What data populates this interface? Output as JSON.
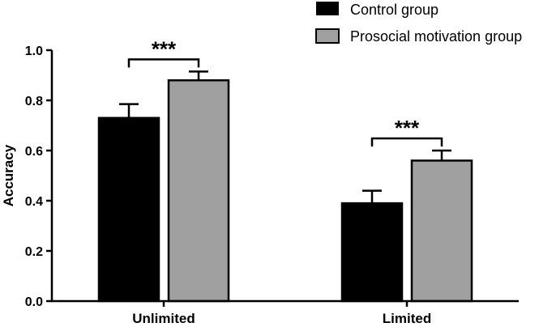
{
  "chart_data": {
    "type": "bar",
    "title": "",
    "xlabel": "",
    "ylabel": "Accuracy",
    "ylim": [
      0,
      1.0
    ],
    "yticks": [
      "0.0",
      "0.2",
      "0.4",
      "0.6",
      "0.8",
      "1.0"
    ],
    "grid": false,
    "legend_position": "top-right",
    "categories": [
      "Unlimited",
      "Limited"
    ],
    "series": [
      {
        "name": "Control group",
        "color": "#000000",
        "values": [
          0.73,
          0.39
        ],
        "errors": [
          0.055,
          0.05
        ]
      },
      {
        "name": "Prosocial motivation group",
        "color": "#a0a0a0",
        "values": [
          0.88,
          0.56
        ],
        "errors": [
          0.035,
          0.04
        ]
      }
    ],
    "significance": [
      {
        "category": "Unlimited",
        "label": "***"
      },
      {
        "category": "Limited",
        "label": "***"
      }
    ]
  }
}
